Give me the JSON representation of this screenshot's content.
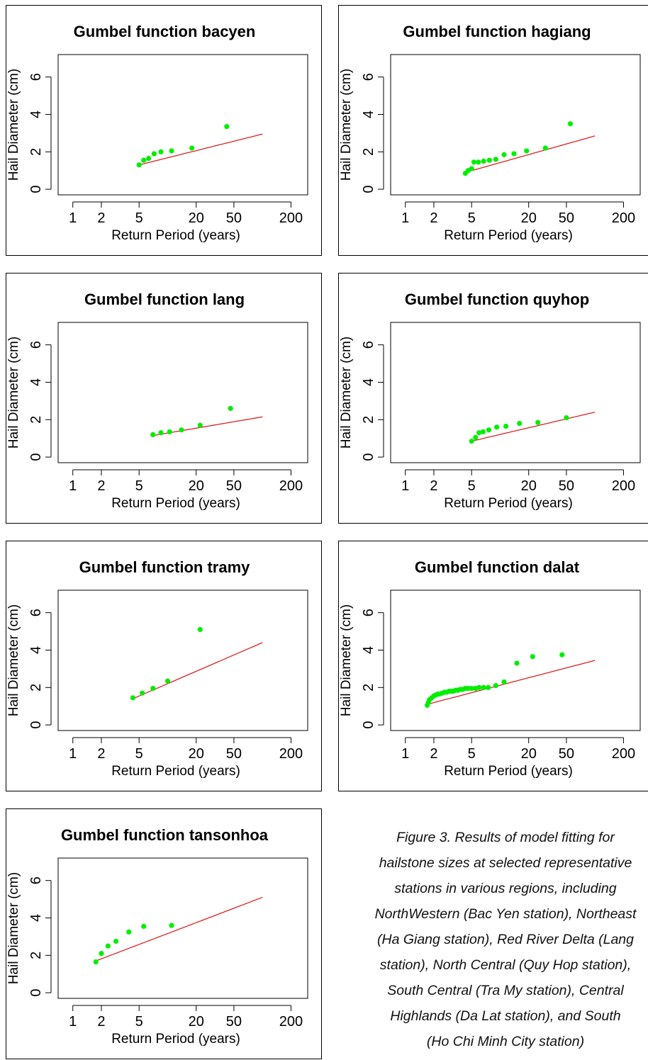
{
  "chart_data": [
    {
      "type": "scatter",
      "title": "Gumbel function bacyen",
      "xlabel": "Return Period (years)",
      "ylabel": "Hail Diameter (cm)",
      "x_scale": "log",
      "xlim": [
        0.7,
        300
      ],
      "ylim": [
        -0.3,
        7.2
      ],
      "x_ticks": [
        "1",
        "2",
        "5",
        "20",
        "50",
        "200"
      ],
      "y_ticks": [
        "0",
        "2",
        "4",
        "6"
      ],
      "points": {
        "x": [
          5.0,
          5.6,
          6.3,
          7.2,
          8.5,
          11.0,
          18.0,
          42.0
        ],
        "y": [
          1.3,
          1.55,
          1.65,
          1.9,
          2.0,
          2.05,
          2.2,
          3.35
        ]
      },
      "fit": {
        "x": [
          5.0,
          100.0
        ],
        "y": [
          1.3,
          2.95
        ]
      },
      "point_color": "#00ee00",
      "fit_color": "#dd2222"
    },
    {
      "type": "scatter",
      "title": "Gumbel function hagiang",
      "xlabel": "Return Period (years)",
      "ylabel": "Hail Diameter (cm)",
      "x_scale": "log",
      "xlim": [
        0.7,
        300
      ],
      "ylim": [
        -0.3,
        7.2
      ],
      "x_ticks": [
        "1",
        "2",
        "5",
        "20",
        "50",
        "200"
      ],
      "y_ticks": [
        "0",
        "2",
        "4",
        "6"
      ],
      "points": {
        "x": [
          4.3,
          4.6,
          5.0,
          5.3,
          5.9,
          6.7,
          7.7,
          9.0,
          11.0,
          14.0,
          19.0,
          30.0,
          55.0
        ],
        "y": [
          0.85,
          1.0,
          1.1,
          1.45,
          1.45,
          1.5,
          1.55,
          1.6,
          1.85,
          1.9,
          2.05,
          2.2,
          3.5
        ]
      },
      "fit": {
        "x": [
          4.3,
          100.0
        ],
        "y": [
          0.9,
          2.85
        ]
      },
      "point_color": "#00ee00",
      "fit_color": "#dd2222"
    },
    {
      "type": "scatter",
      "title": "Gumbel function lang",
      "xlabel": "Return Period (years)",
      "ylabel": "Hail Diameter (cm)",
      "x_scale": "log",
      "xlim": [
        0.7,
        300
      ],
      "ylim": [
        -0.3,
        7.2
      ],
      "x_ticks": [
        "1",
        "2",
        "5",
        "20",
        "50",
        "200"
      ],
      "y_ticks": [
        "0",
        "2",
        "4",
        "6"
      ],
      "points": {
        "x": [
          7.0,
          8.5,
          10.5,
          14.0,
          22.0,
          46.0
        ],
        "y": [
          1.2,
          1.3,
          1.35,
          1.45,
          1.7,
          2.6
        ]
      },
      "fit": {
        "x": [
          7.0,
          100.0
        ],
        "y": [
          1.15,
          2.15
        ]
      },
      "point_color": "#00ee00",
      "fit_color": "#dd2222"
    },
    {
      "type": "scatter",
      "title": "Gumbel function quyhop",
      "xlabel": "Return Period (years)",
      "ylabel": "Hail Diameter (cm)",
      "x_scale": "log",
      "xlim": [
        0.7,
        300
      ],
      "ylim": [
        -0.3,
        7.2
      ],
      "x_ticks": [
        "1",
        "2",
        "5",
        "20",
        "50",
        "200"
      ],
      "y_ticks": [
        "0",
        "2",
        "4",
        "6"
      ],
      "points": {
        "x": [
          5.0,
          5.5,
          6.0,
          6.6,
          7.6,
          9.2,
          11.5,
          16.0,
          25.0,
          50.0
        ],
        "y": [
          0.85,
          1.05,
          1.3,
          1.35,
          1.45,
          1.6,
          1.65,
          1.8,
          1.85,
          2.1
        ]
      },
      "fit": {
        "x": [
          5.0,
          100.0
        ],
        "y": [
          0.85,
          2.4
        ]
      },
      "point_color": "#00ee00",
      "fit_color": "#dd2222"
    },
    {
      "type": "scatter",
      "title": "Gumbel function tramy",
      "xlabel": "Return Period (years)",
      "ylabel": "Hail Diameter (cm)",
      "x_scale": "log",
      "xlim": [
        0.7,
        300
      ],
      "ylim": [
        -0.3,
        7.2
      ],
      "x_ticks": [
        "1",
        "2",
        "5",
        "20",
        "50",
        "200"
      ],
      "y_ticks": [
        "0",
        "2",
        "4",
        "6"
      ],
      "points": {
        "x": [
          4.3,
          5.4,
          7.0,
          10.0,
          22.0
        ],
        "y": [
          1.45,
          1.7,
          1.95,
          2.35,
          5.1
        ]
      },
      "fit": {
        "x": [
          4.3,
          100.0
        ],
        "y": [
          1.4,
          4.4
        ]
      },
      "point_color": "#00ee00",
      "fit_color": "#dd2222"
    },
    {
      "type": "scatter",
      "title": "Gumbel function dalat",
      "xlabel": "Return Period (years)",
      "ylabel": "Hail Diameter (cm)",
      "x_scale": "log",
      "xlim": [
        0.7,
        300
      ],
      "ylim": [
        -0.3,
        7.2
      ],
      "x_ticks": [
        "1",
        "2",
        "5",
        "20",
        "50",
        "200"
      ],
      "y_ticks": [
        "0",
        "2",
        "4",
        "6"
      ],
      "points": {
        "x": [
          1.7,
          1.75,
          1.8,
          1.9,
          2.0,
          2.1,
          2.2,
          2.3,
          2.45,
          2.6,
          2.75,
          2.9,
          3.05,
          3.2,
          3.4,
          3.6,
          3.8,
          4.0,
          4.3,
          4.6,
          5.0,
          5.5,
          6.0,
          6.7,
          7.5,
          9.0,
          11.0,
          15.0,
          22.0,
          45.0
        ],
        "y": [
          1.05,
          1.2,
          1.35,
          1.45,
          1.55,
          1.6,
          1.65,
          1.65,
          1.7,
          1.75,
          1.75,
          1.8,
          1.8,
          1.8,
          1.85,
          1.85,
          1.9,
          1.9,
          1.95,
          1.95,
          1.95,
          1.95,
          2.0,
          2.0,
          2.0,
          2.1,
          2.3,
          3.3,
          3.65,
          3.75
        ]
      },
      "fit": {
        "x": [
          1.7,
          100.0
        ],
        "y": [
          1.1,
          3.45
        ]
      },
      "point_color": "#00ee00",
      "fit_color": "#dd2222"
    },
    {
      "type": "scatter",
      "title": "Gumbel function tansonhoa",
      "xlabel": "Return Period (years)",
      "ylabel": "Hail Diameter (cm)",
      "x_scale": "log",
      "xlim": [
        0.7,
        300
      ],
      "ylim": [
        -0.3,
        7.2
      ],
      "x_ticks": [
        "1",
        "2",
        "5",
        "20",
        "50",
        "200"
      ],
      "y_ticks": [
        "0",
        "2",
        "4",
        "6"
      ],
      "points": {
        "x": [
          1.75,
          2.0,
          2.35,
          2.85,
          3.9,
          5.6,
          11.0
        ],
        "y": [
          1.65,
          2.1,
          2.5,
          2.75,
          3.25,
          3.55,
          3.6
        ]
      },
      "fit": {
        "x": [
          1.75,
          100.0
        ],
        "y": [
          1.7,
          5.1
        ]
      },
      "point_color": "#00ee00",
      "fit_color": "#dd2222"
    }
  ],
  "caption": {
    "lines": [
      "Figure 3. Results of model fitting for",
      "hailstone sizes at selected representative",
      "stations in various regions, including",
      "NorthWestern (Bac Yen station), Northeast",
      "(Ha Giang station), Red River Delta (Lang",
      "station), North Central (Quy Hop station),",
      "South Central (Tra My station), Central",
      "Highlands (Da Lat station), and South",
      "(Ho Chi Minh City station)"
    ]
  }
}
